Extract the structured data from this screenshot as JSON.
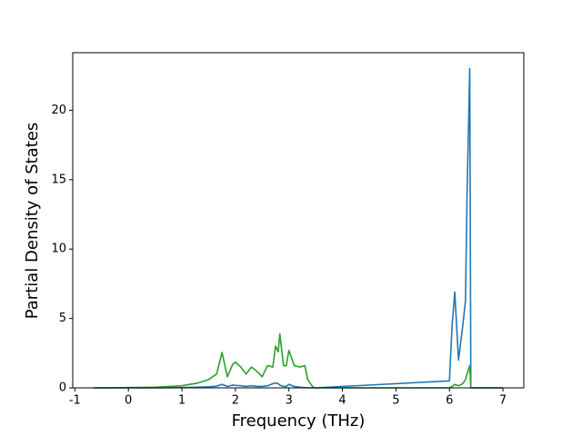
{
  "chart_data": {
    "type": "line",
    "xlabel": "Frequency (THz)",
    "ylabel": "Partial Density of States",
    "x": [
      -0.65,
      0,
      0.5,
      1.0,
      1.3,
      1.5,
      1.65,
      1.75,
      1.85,
      1.95,
      2.0,
      2.1,
      2.2,
      2.3,
      2.4,
      2.5,
      2.6,
      2.7,
      2.75,
      2.8,
      2.83,
      2.9,
      2.95,
      3.0,
      3.1,
      3.2,
      3.3,
      3.35,
      3.45,
      3.5,
      6.0,
      6.05,
      6.1,
      6.17,
      6.25,
      6.3,
      6.33,
      6.38,
      6.4,
      7.0
    ],
    "series": [
      {
        "color": "#1f77b4",
        "values": [
          0,
          0,
          0,
          0.02,
          0.05,
          0.08,
          0.12,
          0.25,
          0.1,
          0.2,
          0.18,
          0.15,
          0.1,
          0.15,
          0.1,
          0.1,
          0.15,
          0.3,
          0.35,
          0.3,
          0.2,
          0.1,
          0.1,
          0.25,
          0.1,
          0.05,
          0.02,
          0.01,
          0,
          0,
          0.5,
          4.5,
          6.9,
          2.0,
          4.5,
          6.3,
          14,
          23,
          0,
          0
        ]
      },
      {
        "color": "#2ca02c",
        "values": [
          0,
          0.02,
          0.05,
          0.15,
          0.35,
          0.6,
          1.0,
          2.55,
          0.8,
          1.7,
          1.85,
          1.5,
          1.0,
          1.5,
          1.2,
          0.8,
          1.6,
          1.5,
          3.0,
          2.6,
          3.9,
          1.6,
          1.6,
          2.7,
          1.6,
          1.5,
          1.6,
          0.6,
          0.05,
          0,
          0,
          0.1,
          0.25,
          0.15,
          0.3,
          0.6,
          1.0,
          1.6,
          0,
          0
        ]
      }
    ],
    "xlim": [
      -1.04,
      7.39
    ],
    "ylim": [
      0,
      24.15
    ],
    "xticks": [
      -1,
      0,
      1,
      2,
      3,
      4,
      5,
      6,
      7
    ],
    "yticks": [
      0,
      5,
      10,
      15,
      20
    ]
  }
}
